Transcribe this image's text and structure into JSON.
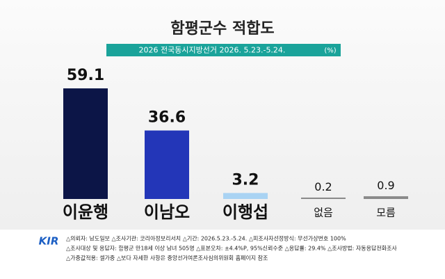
{
  "chart_data": {
    "type": "bar",
    "title": "함평군수 적합도",
    "subtitle": "2026 전국동시지방선거 2026. 5.23.-5.24.",
    "unit": "(%)",
    "categories": [
      "이윤행",
      "이남오",
      "이행섭",
      "없음",
      "모름"
    ],
    "values": [
      59.1,
      36.6,
      3.2,
      0.2,
      0.9
    ],
    "colors": [
      "#0c1547",
      "#2336b8",
      "#a9d3f3",
      "#8a8a8a",
      "#8a8a8a"
    ],
    "logo": "KIR",
    "notes": [
      "△의뢰자: 남도일보  △조사기관: 코리아정보리서치  △기간: 2026.5.23.-5.24.  △피조사자선정방식: 무선가상번호 100%",
      "△조사대상 및 응답자: 함평군 만18세 이상 남녀 505명  △표본오차: ±4.4%P, 95%신뢰수준  △응답률: 29.4%  △조사방법: 자동응답전화조사",
      "△가중값적용: 셀가중  △보다 자세한 사항은 중앙선거여론조사심의위원회 홈페이지 참조"
    ]
  }
}
